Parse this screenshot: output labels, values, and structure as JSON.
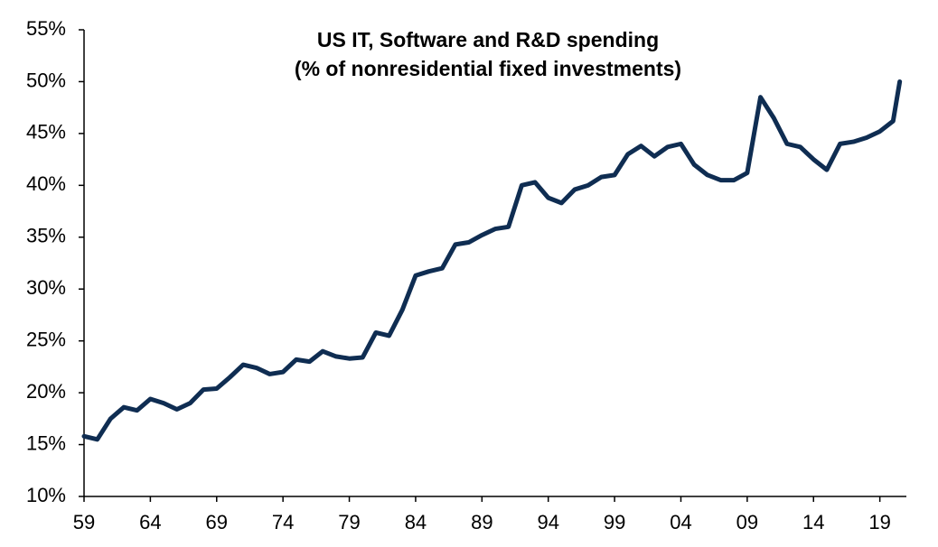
{
  "chart_data": {
    "type": "line",
    "title": [
      "US IT, Software and R&D spending",
      "(% of nonresidential fixed investments)"
    ],
    "x": [
      1959,
      1960,
      1961,
      1962,
      1963,
      1964,
      1965,
      1966,
      1967,
      1968,
      1969,
      1970,
      1971,
      1972,
      1973,
      1974,
      1975,
      1976,
      1977,
      1978,
      1979,
      1980,
      1981,
      1982,
      1983,
      1984,
      1985,
      1986,
      1987,
      1988,
      1989,
      1990,
      1991,
      1992,
      1993,
      1994,
      1995,
      1996,
      1997,
      1998,
      1999,
      2000,
      2001,
      2002,
      2003,
      2004,
      2005,
      2006,
      2007,
      2008,
      2009,
      2010,
      2011,
      2012,
      2013,
      2014,
      2015,
      2016,
      2017,
      2018,
      2019,
      2020,
      2020.5
    ],
    "series": [
      {
        "name": "US IT, Software and R&D spending",
        "color": "#0f2d52",
        "values": [
          15.8,
          15.5,
          17.5,
          18.6,
          18.3,
          19.4,
          19.0,
          18.4,
          19.0,
          20.3,
          20.4,
          21.5,
          22.7,
          22.4,
          21.8,
          22.0,
          23.2,
          23.0,
          24.0,
          23.5,
          23.3,
          23.4,
          25.8,
          25.5,
          28.0,
          31.3,
          31.7,
          32.0,
          34.3,
          34.5,
          35.2,
          35.8,
          36.0,
          40.0,
          40.3,
          38.8,
          38.3,
          39.6,
          40.0,
          40.8,
          41.0,
          43.0,
          43.8,
          42.8,
          43.7,
          44.0,
          42.0,
          41.0,
          40.5,
          40.5,
          41.2,
          48.5,
          46.5,
          44.0,
          43.7,
          42.5,
          41.5,
          44.0,
          44.2,
          44.6,
          45.2,
          46.2,
          50.0
        ]
      }
    ],
    "xlim": [
      1959,
      2021
    ],
    "xticks": [
      {
        "value": 1959,
        "label": "59"
      },
      {
        "value": 1964,
        "label": "64"
      },
      {
        "value": 1969,
        "label": "69"
      },
      {
        "value": 1974,
        "label": "74"
      },
      {
        "value": 1979,
        "label": "79"
      },
      {
        "value": 1984,
        "label": "84"
      },
      {
        "value": 1989,
        "label": "89"
      },
      {
        "value": 1994,
        "label": "94"
      },
      {
        "value": 1999,
        "label": "99"
      },
      {
        "value": 2004,
        "label": "04"
      },
      {
        "value": 2009,
        "label": "09"
      },
      {
        "value": 2014,
        "label": "14"
      },
      {
        "value": 2019,
        "label": "19"
      }
    ],
    "ylim": [
      10,
      55
    ],
    "yticks": [
      {
        "value": 10,
        "label": "10%"
      },
      {
        "value": 15,
        "label": "15%"
      },
      {
        "value": 20,
        "label": "20%"
      },
      {
        "value": 25,
        "label": "25%"
      },
      {
        "value": 30,
        "label": "30%"
      },
      {
        "value": 35,
        "label": "35%"
      },
      {
        "value": 40,
        "label": "40%"
      },
      {
        "value": 45,
        "label": "45%"
      },
      {
        "value": 50,
        "label": "50%"
      },
      {
        "value": 55,
        "label": "55%"
      }
    ],
    "grid": false
  }
}
